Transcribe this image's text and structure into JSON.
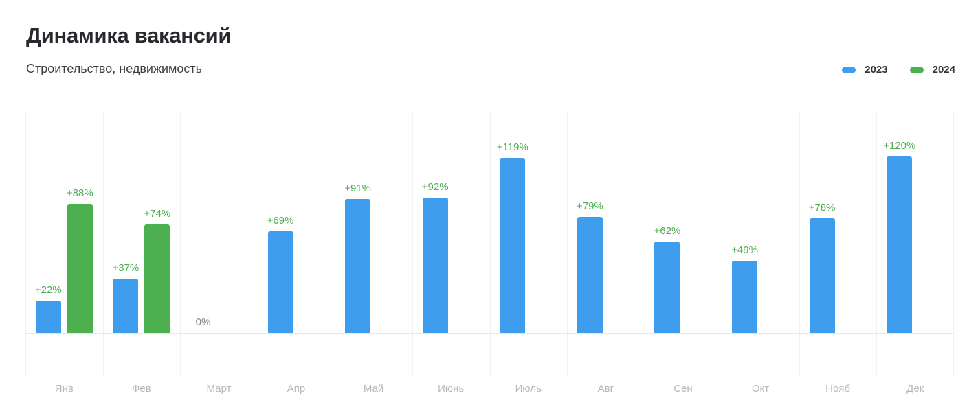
{
  "header": {
    "title": "Динамика вакансий",
    "subtitle": "Строительство, недвижимость"
  },
  "legend": {
    "items": [
      {
        "key": "2023",
        "label": "2023",
        "color": "#3f9dee"
      },
      {
        "key": "2024",
        "label": "2024",
        "color": "#4caf50"
      }
    ]
  },
  "colors": {
    "bar_2023": "#3f9dee",
    "bar_2024": "#4caf50",
    "value_label": "#4bae4f",
    "zero_label": "#87888a",
    "month_label": "#b5b8bc",
    "gridline": "#f1f1f3",
    "baseline": "#e8e8ea",
    "title_text": "#28282d"
  },
  "chart_data": {
    "type": "bar",
    "title": "Динамика вакансий",
    "subtitle": "Строительство, недвижимость",
    "categories": [
      "Янв",
      "Фев",
      "Март",
      "Апр",
      "Май",
      "Июнь",
      "Июль",
      "Авг",
      "Сен",
      "Окт",
      "Нояб",
      "Дек"
    ],
    "category_keys": [
      "jan",
      "feb",
      "mar",
      "apr",
      "may",
      "jun",
      "jul",
      "aug",
      "sep",
      "oct",
      "nov",
      "dec"
    ],
    "series": [
      {
        "name": "2023",
        "color": "#3f9dee",
        "values": [
          22,
          37,
          0,
          69,
          91,
          92,
          119,
          79,
          62,
          49,
          78,
          120
        ],
        "labels": [
          "+22%",
          "+37%",
          "0%",
          "+69%",
          "+91%",
          "+92%",
          "+119%",
          "+79%",
          "+62%",
          "+49%",
          "+78%",
          "+120%"
        ]
      },
      {
        "name": "2024",
        "color": "#4caf50",
        "values": [
          88,
          74,
          null,
          null,
          null,
          null,
          null,
          null,
          null,
          null,
          null,
          null
        ],
        "labels": [
          "+88%",
          "+74%",
          null,
          null,
          null,
          null,
          null,
          null,
          null,
          null,
          null,
          null
        ]
      }
    ],
    "unit": "%",
    "ylim": [
      0,
      150
    ],
    "grid": "vertical-month-separators",
    "legend_position": "top-right",
    "value_labels_above_bars": true,
    "zero_value_shown_as_text": true
  }
}
